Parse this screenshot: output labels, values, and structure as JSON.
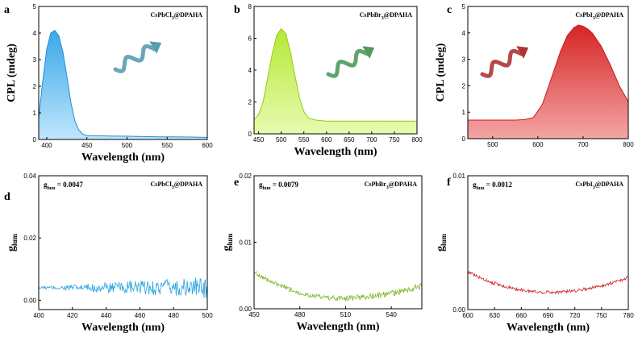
{
  "chart_data": [
    {
      "panel_id": "a",
      "type": "area",
      "legend": "CsPbCl",
      "legend_sub": "3",
      "legend_tail": "@DPAHA",
      "ylabel": "CPL (mdeg)",
      "xlabel": "Wavelength (nm)",
      "xlim": [
        390,
        600
      ],
      "ylim": [
        0,
        5
      ],
      "xticks": [
        400,
        450,
        500,
        550,
        600
      ],
      "yticks": [
        0,
        1,
        2,
        3,
        4,
        5
      ],
      "x": [
        390,
        395,
        400,
        405,
        410,
        415,
        420,
        425,
        430,
        435,
        440,
        445,
        450,
        460,
        480,
        500,
        520,
        540,
        560,
        580,
        600
      ],
      "values": [
        0.8,
        2.2,
        3.4,
        4.0,
        4.1,
        3.9,
        3.3,
        2.4,
        1.4,
        0.7,
        0.35,
        0.2,
        0.15,
        0.14,
        0.13,
        0.12,
        0.11,
        0.1,
        0.1,
        0.09,
        0.08
      ],
      "fill_color": "#5bb8ee",
      "line_color": "#1f8fd6",
      "helix_color": "#5a9cb0"
    },
    {
      "panel_id": "b",
      "type": "area",
      "legend": "CsPbBr",
      "legend_sub": "3",
      "legend_tail": "@DPAHA",
      "ylabel": "",
      "xlabel": "Wavelength (nm)",
      "xlim": [
        440,
        800
      ],
      "ylim": [
        0,
        8
      ],
      "xticks": [
        450,
        500,
        550,
        600,
        650,
        700,
        750,
        800
      ],
      "yticks": [
        0,
        2,
        4,
        6,
        8
      ],
      "x": [
        440,
        450,
        460,
        470,
        480,
        490,
        500,
        510,
        520,
        530,
        540,
        550,
        560,
        570,
        580,
        600,
        650,
        700,
        750,
        800
      ],
      "values": [
        0.9,
        1.2,
        2.0,
        3.5,
        5.0,
        6.2,
        6.6,
        6.3,
        5.2,
        3.7,
        2.3,
        1.4,
        1.0,
        0.9,
        0.85,
        0.8,
        0.8,
        0.8,
        0.8,
        0.8
      ],
      "fill_color": "#c5ef55",
      "line_color": "#8fcc18",
      "helix_color": "#4f9a5c"
    },
    {
      "panel_id": "c",
      "type": "area",
      "legend": "CsPbI",
      "legend_sub": "3",
      "legend_tail": "@DPAHA",
      "ylabel": "CPL (mdeg)",
      "xlabel": "",
      "xlim": [
        445,
        800
      ],
      "ylim": [
        0,
        5
      ],
      "xticks": [
        500,
        600,
        700,
        800
      ],
      "yticks": [
        0,
        1,
        2,
        3,
        4,
        5
      ],
      "x": [
        445,
        500,
        550,
        570,
        590,
        610,
        630,
        650,
        665,
        680,
        690,
        700,
        710,
        720,
        740,
        760,
        780,
        800
      ],
      "values": [
        0.7,
        0.7,
        0.7,
        0.72,
        0.8,
        1.3,
        2.3,
        3.3,
        3.9,
        4.2,
        4.3,
        4.25,
        4.15,
        4.0,
        3.5,
        2.8,
        2.0,
        1.4
      ],
      "fill_color": "#e55a5a",
      "line_color": "#c81818",
      "helix_color": "#b03434"
    },
    {
      "panel_id": "d",
      "type": "line",
      "legend": "CsPbCl",
      "legend_sub": "3",
      "legend_tail": "@DPAHA",
      "glum_prefix": "g",
      "glum_sub": "lum",
      "glum_value": "= 0.0047",
      "ylabel": "g",
      "ylabel_sub": "lum",
      "xlabel": "Wavelength (nm)",
      "xlim": [
        400,
        500
      ],
      "ylim": [
        -0.003,
        0.04
      ],
      "xticks": [
        400,
        420,
        440,
        460,
        480,
        500
      ],
      "yticks": [
        0.0,
        0.02,
        0.04
      ],
      "ytick_labels": [
        "0.00",
        "0.02",
        "0.04"
      ],
      "base": 0.004,
      "noise_start": 0.0004,
      "noise_end": 0.0035,
      "line_color": "#29a3e0"
    },
    {
      "panel_id": "e",
      "type": "line",
      "legend": "CsPbBr",
      "legend_sub": "3",
      "legend_tail": "@DPAHA",
      "glum_prefix": "g",
      "glum_sub": "lum",
      "glum_value": "= 0.0079",
      "ylabel": "g",
      "ylabel_sub": "lum",
      "xlabel": "Wavelength (nm)",
      "xlim": [
        450,
        560
      ],
      "ylim": [
        0,
        0.02
      ],
      "xticks": [
        450,
        480,
        510,
        540
      ],
      "yticks": [
        0.0,
        0.01,
        0.02
      ],
      "ytick_labels": [
        "0.00",
        "0.01",
        "0.02"
      ],
      "shape": "u",
      "left_val": 0.0055,
      "min_val": 0.0016,
      "right_val": 0.0034,
      "noise_start": 0.0003,
      "noise_end": 0.0005,
      "line_color": "#7ab51d"
    },
    {
      "panel_id": "f",
      "type": "line",
      "legend": "CsPbI",
      "legend_sub": "3",
      "legend_tail": "@DPAHA",
      "glum_prefix": "g",
      "glum_sub": "lum",
      "glum_value": "= 0.0012",
      "ylabel": "g",
      "ylabel_sub": "lum",
      "xlabel": "Wavelength (nm)",
      "xlim": [
        600,
        780
      ],
      "ylim": [
        0,
        0.01
      ],
      "xticks": [
        600,
        630,
        660,
        690,
        720,
        750,
        780
      ],
      "yticks": [
        0.0,
        0.01
      ],
      "ytick_labels": [
        "0.00",
        "0.01"
      ],
      "shape": "u",
      "left_val": 0.0028,
      "min_val": 0.0013,
      "right_val": 0.0024,
      "noise_start": 0.00012,
      "noise_end": 0.00012,
      "line_color": "#d21e1e"
    }
  ]
}
